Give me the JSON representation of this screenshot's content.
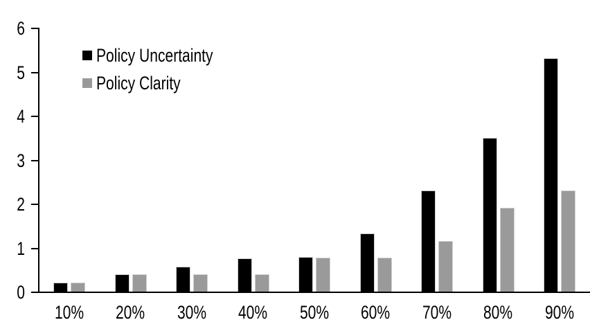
{
  "chart_data": {
    "type": "bar",
    "title": "",
    "xlabel": "",
    "ylabel": "",
    "categories": [
      "10%",
      "20%",
      "30%",
      "40%",
      "50%",
      "60%",
      "70%",
      "80%",
      "90%"
    ],
    "series": [
      {
        "name": "Policy Uncertainty",
        "color": "#000000",
        "values": [
          0.2,
          0.4,
          0.57,
          0.76,
          0.78,
          1.33,
          2.3,
          3.5,
          5.3
        ]
      },
      {
        "name": "Policy Clarity",
        "color": "#9a9a9a",
        "values": [
          0.2,
          0.4,
          0.4,
          0.4,
          0.77,
          0.77,
          1.15,
          1.9,
          2.3
        ]
      }
    ],
    "ylim": [
      0,
      6
    ],
    "yticks": [
      0,
      1,
      2,
      3,
      4,
      5,
      6
    ],
    "grid": false,
    "legend_position": "top-left",
    "axis_color": "#000000",
    "bar_outline_color": "#cfcfcf"
  }
}
